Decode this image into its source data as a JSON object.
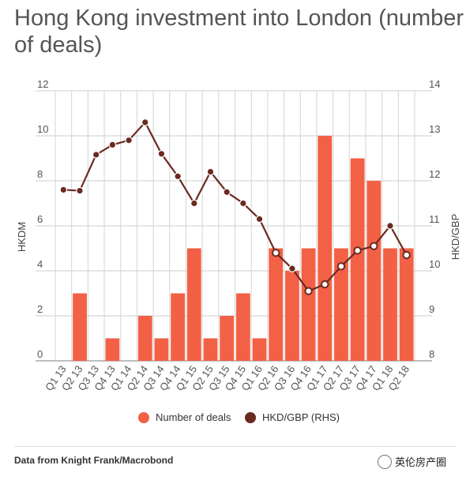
{
  "chart_data": {
    "type": "bar",
    "title": "Hong Kong investment into London (number of deals)",
    "ylabel": "HKDM",
    "y2label": "HKD/GBP",
    "ylim": [
      0,
      12
    ],
    "y2lim": [
      8,
      14
    ],
    "yticks": [
      "0",
      "2",
      "4",
      "6",
      "8",
      "10",
      "12"
    ],
    "y2ticks": [
      "8",
      "9",
      "10",
      "11",
      "12",
      "13",
      "14"
    ],
    "categories": [
      "Q1 13",
      "Q2 13",
      "Q3 13",
      "Q4 13",
      "Q1 14",
      "Q2 14",
      "Q3 14",
      "Q4 14",
      "Q1 15",
      "Q2 15",
      "Q3 15",
      "Q4 15",
      "Q1 16",
      "Q2 16",
      "Q3 16",
      "Q4 16",
      "Q1 17",
      "Q2 17",
      "Q3 17",
      "Q4 17",
      "Q1 18",
      "Q2 18"
    ],
    "series": [
      {
        "name": "Number of deals",
        "type": "bar",
        "axis": "left",
        "color": "#f26146",
        "values": [
          0,
          3,
          0,
          1,
          0,
          2,
          1,
          3,
          5,
          1,
          2,
          3,
          1,
          5,
          4,
          5,
          10,
          5,
          9,
          8,
          5,
          5
        ]
      },
      {
        "name": "HKD/GBP (RHS)",
        "type": "line",
        "axis": "right",
        "color": "#6b2a20",
        "x": [
          "Q1 13",
          "Q2 13",
          "Q3 13",
          "Q4 13",
          "Q1 14",
          "Q2 14",
          "Q3 14",
          "Q4 14",
          "Q1 15",
          "Q2 15",
          "Q3 15",
          "Q4 15",
          "Q1 16",
          "Q2 16",
          "Q3 16",
          "Q4 16",
          "Q1 17",
          "Q2 17",
          "Q3 17",
          "Q4 17",
          "Q1 18",
          "Q2 18"
        ],
        "values": [
          11.8,
          11.78,
          12.58,
          12.8,
          12.9,
          13.3,
          12.6,
          12.1,
          11.5,
          12.2,
          11.75,
          11.5,
          11.15,
          10.4,
          10.05,
          9.55,
          9.7,
          10.1,
          10.45,
          10.55,
          11.0,
          10.35
        ]
      }
    ],
    "grid": true,
    "legend": "bottom-center"
  },
  "source": "Data from Knight Frank/Macrobond",
  "watermark": "英伦房产圈"
}
